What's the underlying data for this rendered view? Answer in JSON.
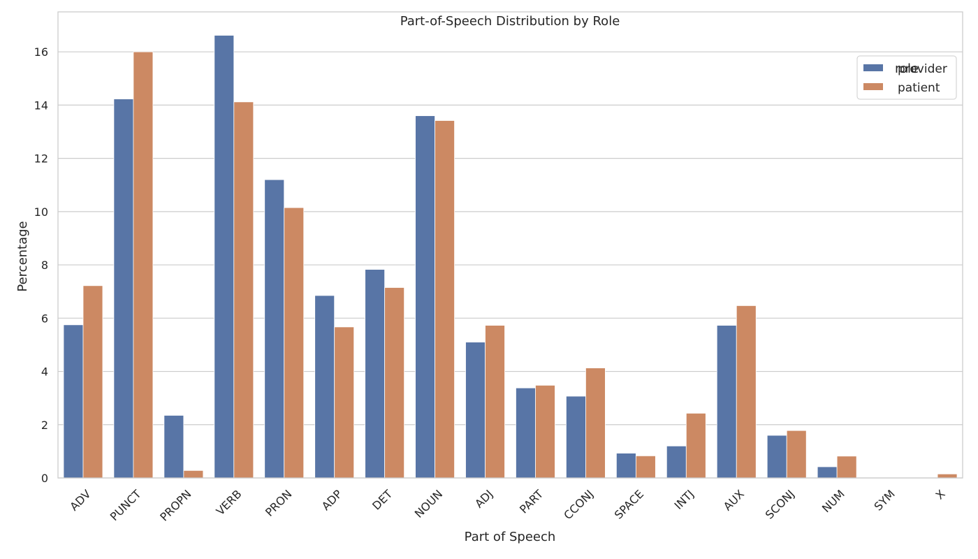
{
  "chart_data": {
    "type": "bar",
    "title": "Part-of-Speech Distribution by Role",
    "xlabel": "Part of Speech",
    "ylabel": "Percentage",
    "ylim": [
      0,
      17.5
    ],
    "yticks": [
      0,
      2,
      4,
      6,
      8,
      10,
      12,
      14,
      16
    ],
    "grid": true,
    "legend": {
      "title": "role",
      "position": "top-right"
    },
    "categories": [
      "ADV",
      "PUNCT",
      "PROPN",
      "VERB",
      "PRON",
      "ADP",
      "DET",
      "NOUN",
      "ADJ",
      "PART",
      "CCONJ",
      "SPACE",
      "INTJ",
      "AUX",
      "SCONJ",
      "NUM",
      "SYM",
      "X"
    ],
    "series": [
      {
        "name": "provider",
        "color": "#5875a6",
        "values": [
          5.75,
          14.23,
          2.35,
          16.62,
          11.2,
          6.85,
          7.83,
          13.6,
          5.1,
          3.38,
          3.07,
          0.93,
          1.2,
          5.73,
          1.6,
          0.42,
          0.0,
          0.0
        ]
      },
      {
        "name": "patient",
        "color": "#cc8963",
        "values": [
          7.22,
          16.0,
          0.28,
          14.12,
          10.15,
          5.67,
          7.15,
          13.42,
          5.73,
          3.48,
          4.13,
          0.83,
          2.43,
          6.47,
          1.78,
          0.82,
          0.0,
          0.15
        ]
      }
    ]
  }
}
